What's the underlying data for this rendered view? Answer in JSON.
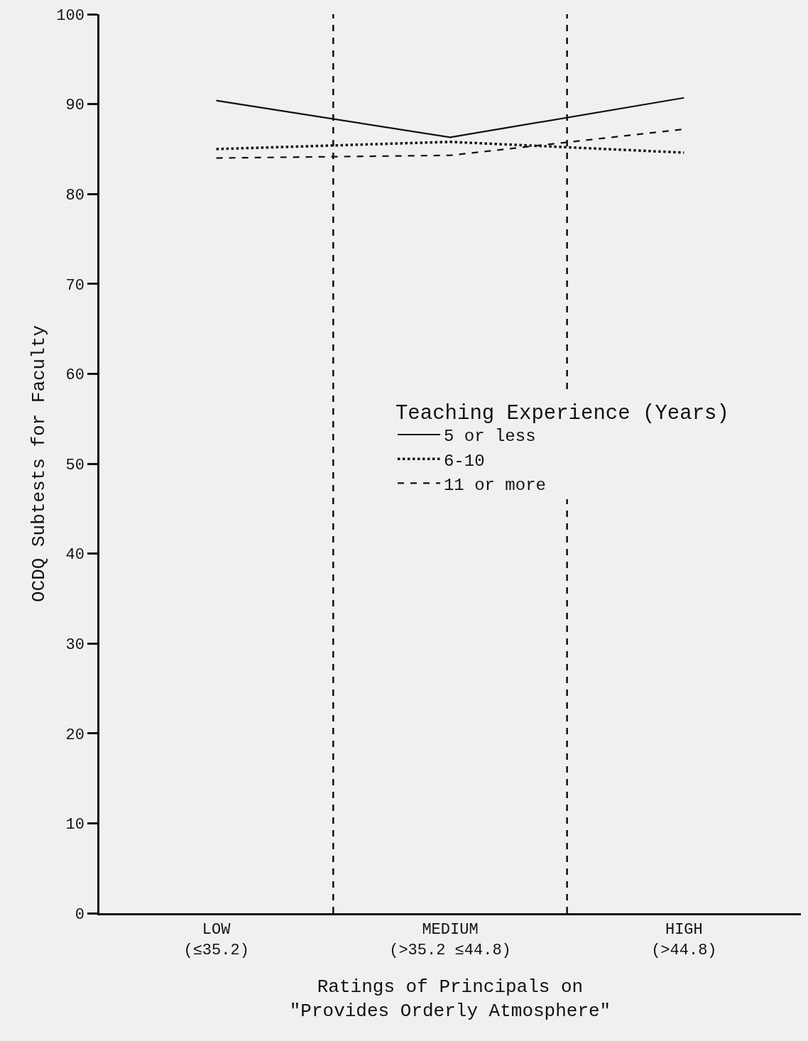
{
  "chart_data": {
    "type": "line",
    "categories": [
      "LOW\n(≤35.2)",
      "MEDIUM\n(>35.2 ≤44.8)",
      "HIGH\n(>44.8)"
    ],
    "xlabel": "Ratings of Principals on\n\"Provides Orderly Atmosphere\"",
    "ylabel": "OCDQ Subtests for Faculty",
    "legend_title": "Teaching Experience (Years)",
    "series": [
      {
        "name": "5 or less",
        "color": "#111111",
        "line_style": "solid",
        "values": [
          90.4,
          86.3,
          90.7
        ]
      },
      {
        "name": "6-10",
        "color": "#111111",
        "line_style": "dotted",
        "values": [
          85.0,
          85.8,
          84.6
        ]
      },
      {
        "name": "11 or more",
        "color": "#111111",
        "line_style": "dashed",
        "values": [
          84.0,
          84.3,
          87.2
        ]
      }
    ],
    "ylim": [
      0,
      100
    ],
    "yticks": [
      0,
      10,
      20,
      30,
      40,
      50,
      60,
      70,
      80,
      90,
      100
    ],
    "grid": false,
    "legend": "center",
    "marker": "none"
  }
}
